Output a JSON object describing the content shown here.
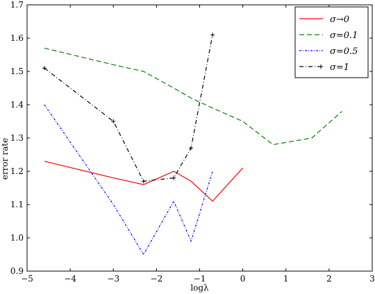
{
  "chart_data": {
    "type": "line",
    "xlabel": "logλ",
    "ylabel": "error rate",
    "xlim": [
      -5,
      3
    ],
    "ylim": [
      0.9,
      1.7
    ],
    "xticks": [
      -5,
      -4,
      -3,
      -2,
      -1,
      0,
      1,
      2,
      3
    ],
    "yticks": [
      0.9,
      1.0,
      1.1,
      1.2,
      1.3,
      1.4,
      1.5,
      1.6,
      1.7
    ],
    "xtick_labels": [
      "−5",
      "−4",
      "−3",
      "−2",
      "−1",
      "0",
      "1",
      "2",
      "3"
    ],
    "ytick_labels": [
      "0.9",
      "1.0",
      "1.1",
      "1.2",
      "1.3",
      "1.4",
      "1.5",
      "1.6",
      "1.7"
    ],
    "grid": false,
    "legend_position": "top-right",
    "series": [
      {
        "name": "σ→0",
        "color": "#ff0000",
        "dash": "solid",
        "marker": "none",
        "x": [
          -4.6,
          -3.0,
          -2.3,
          -1.6,
          -1.2,
          -0.7,
          0.0
        ],
        "y": [
          1.23,
          1.18,
          1.16,
          1.2,
          1.17,
          1.11,
          1.21
        ]
      },
      {
        "name": "σ=0.1",
        "color": "#008000",
        "dash": "dashed",
        "marker": "none",
        "x": [
          -4.6,
          -3.0,
          -2.3,
          -1.6,
          -1.2,
          -0.7,
          0.0,
          0.7,
          1.6,
          2.3
        ],
        "y": [
          1.57,
          1.52,
          1.5,
          1.45,
          1.42,
          1.39,
          1.35,
          1.28,
          1.3,
          1.38
        ]
      },
      {
        "name": "σ=0.5",
        "color": "#0000ff",
        "dash": "dashdot-fine",
        "marker": "none",
        "x": [
          -4.6,
          -3.0,
          -2.3,
          -1.6,
          -1.2,
          -0.7
        ],
        "y": [
          1.4,
          1.1,
          0.95,
          1.11,
          0.99,
          1.2
        ]
      },
      {
        "name": "σ=1",
        "color": "#000000",
        "dash": "dashdot",
        "marker": "plus",
        "x": [
          -4.6,
          -3.0,
          -2.3,
          -1.6,
          -1.2,
          -0.7
        ],
        "y": [
          1.51,
          1.35,
          1.17,
          1.18,
          1.27,
          1.61
        ]
      }
    ]
  }
}
